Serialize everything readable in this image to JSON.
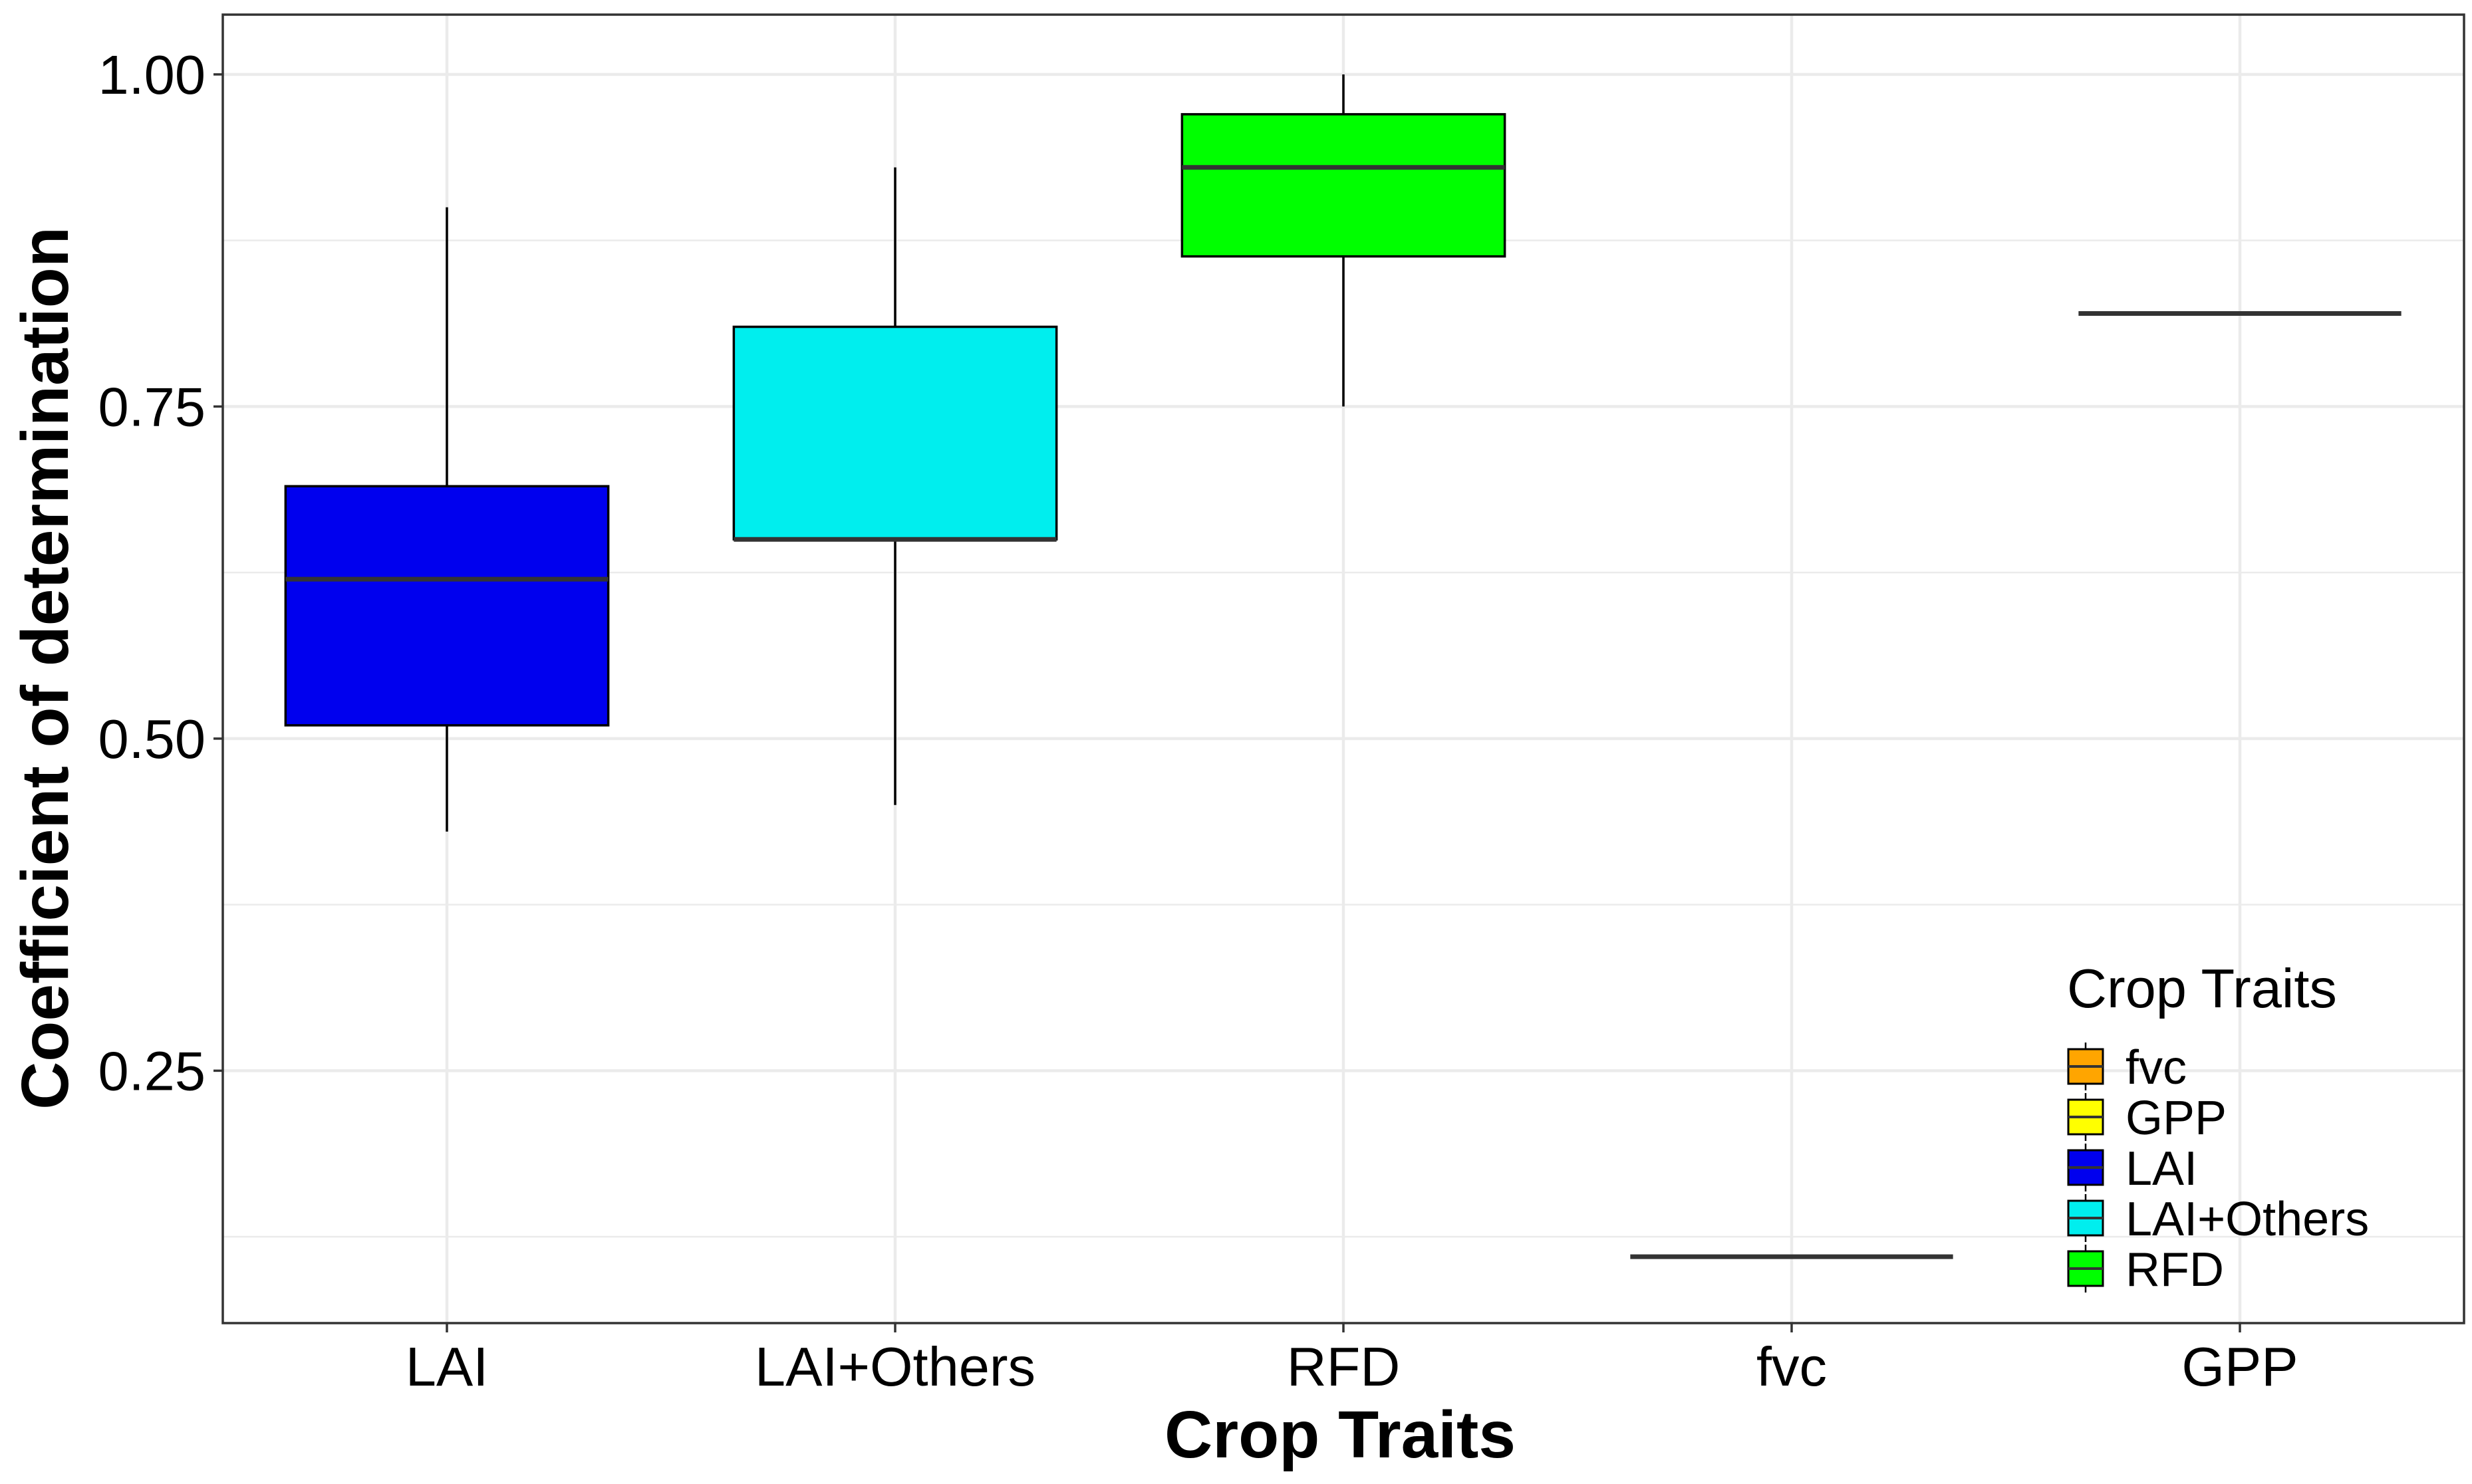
{
  "chart_data": {
    "type": "boxplot",
    "title": "",
    "xlabel": "Crop Traits",
    "ylabel": "Coefficient of determination",
    "ylim": [
      0.06,
      1.045
    ],
    "yticks": [
      0.25,
      0.5,
      0.75,
      1.0
    ],
    "ytick_labels": [
      "0.25",
      "0.50",
      "0.75",
      "1.00"
    ],
    "grid": true,
    "categories": [
      "LAI",
      "LAI+Others",
      "RFD",
      "fvc",
      "GPP"
    ],
    "boxes": [
      {
        "category": "LAI",
        "min": 0.43,
        "q1": 0.51,
        "median": 0.62,
        "q3": 0.69,
        "max": 0.9,
        "color": "#0000EE"
      },
      {
        "category": "LAI+Others",
        "min": 0.45,
        "q1": 0.65,
        "median": 0.65,
        "q3": 0.81,
        "max": 0.93,
        "color": "#00EEEE"
      },
      {
        "category": "RFD",
        "min": 0.75,
        "q1": 0.863,
        "median": 0.93,
        "q3": 0.97,
        "max": 1.0,
        "color": "#00FF00"
      },
      {
        "category": "fvc",
        "min": 0.11,
        "q1": 0.11,
        "median": 0.11,
        "q3": 0.11,
        "max": 0.11,
        "color": "#FFA500"
      },
      {
        "category": "GPP",
        "min": 0.82,
        "q1": 0.82,
        "median": 0.82,
        "q3": 0.82,
        "max": 0.82,
        "color": "#FFFF00"
      }
    ],
    "legend": {
      "title": "Crop Traits",
      "position": "bottom-right",
      "entries": [
        {
          "label": "fvc",
          "color": "#FFA500"
        },
        {
          "label": "GPP",
          "color": "#FFFF00"
        },
        {
          "label": "LAI",
          "color": "#0000EE"
        },
        {
          "label": "LAI+Others",
          "color": "#00EEEE"
        },
        {
          "label": "RFD",
          "color": "#00FF00"
        }
      ]
    }
  }
}
